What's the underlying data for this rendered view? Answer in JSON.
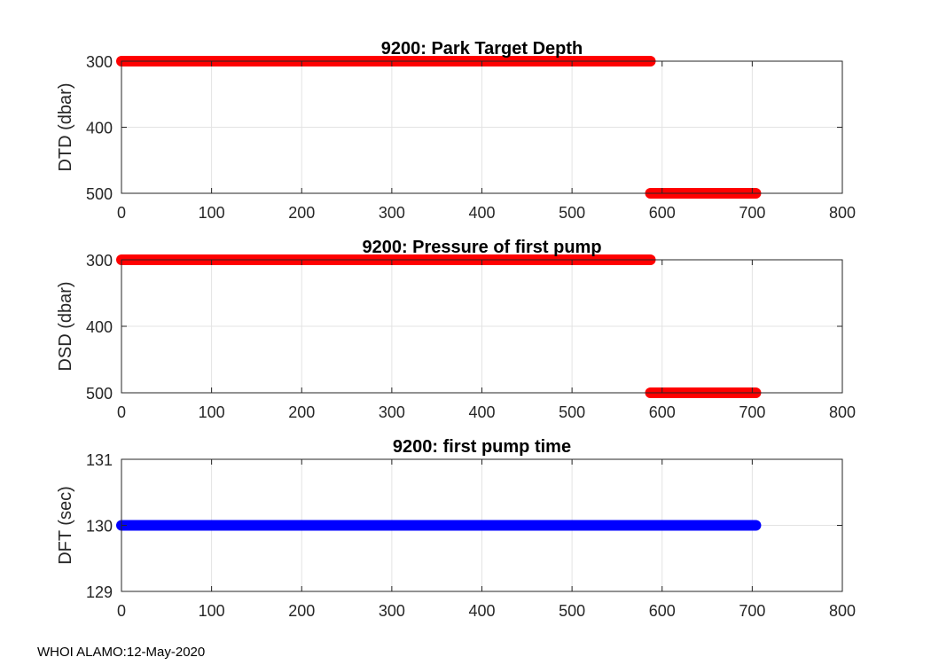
{
  "footer": "WHOI ALAMO:12-May-2020",
  "chart_data": [
    {
      "type": "scatter",
      "title": "9200: Park Target Depth",
      "xlabel": "",
      "ylabel": "DTD (dbar)",
      "xlim": [
        0,
        800
      ],
      "ylim": [
        300,
        500
      ],
      "y_reversed": true,
      "grid": true,
      "xticks": [
        0,
        100,
        200,
        300,
        400,
        500,
        600,
        700,
        800
      ],
      "yticks": [
        300,
        400,
        500
      ],
      "series": [
        {
          "color": "#ff0000",
          "segments": [
            {
              "x": [
                0,
                587
              ],
              "y": 300
            },
            {
              "x": [
                587,
                704
              ],
              "y": 500
            }
          ]
        }
      ]
    },
    {
      "type": "scatter",
      "title": "9200: Pressure of first pump",
      "xlabel": "",
      "ylabel": "DSD (dbar)",
      "xlim": [
        0,
        800
      ],
      "ylim": [
        300,
        500
      ],
      "y_reversed": true,
      "grid": true,
      "xticks": [
        0,
        100,
        200,
        300,
        400,
        500,
        600,
        700,
        800
      ],
      "yticks": [
        300,
        400,
        500
      ],
      "series": [
        {
          "color": "#ff0000",
          "segments": [
            {
              "x": [
                0,
                587
              ],
              "y": 300
            },
            {
              "x": [
                587,
                704
              ],
              "y": 500
            }
          ]
        }
      ]
    },
    {
      "type": "scatter",
      "title": "9200: first pump time",
      "xlabel": "",
      "ylabel": "DFT (sec)",
      "xlim": [
        0,
        800
      ],
      "ylim": [
        129,
        131
      ],
      "y_reversed": false,
      "grid": true,
      "xticks": [
        0,
        100,
        200,
        300,
        400,
        500,
        600,
        700,
        800
      ],
      "yticks": [
        129,
        130,
        131
      ],
      "series": [
        {
          "color": "#0000ff",
          "segments": [
            {
              "x": [
                0,
                704
              ],
              "y": 130
            }
          ]
        }
      ]
    }
  ]
}
